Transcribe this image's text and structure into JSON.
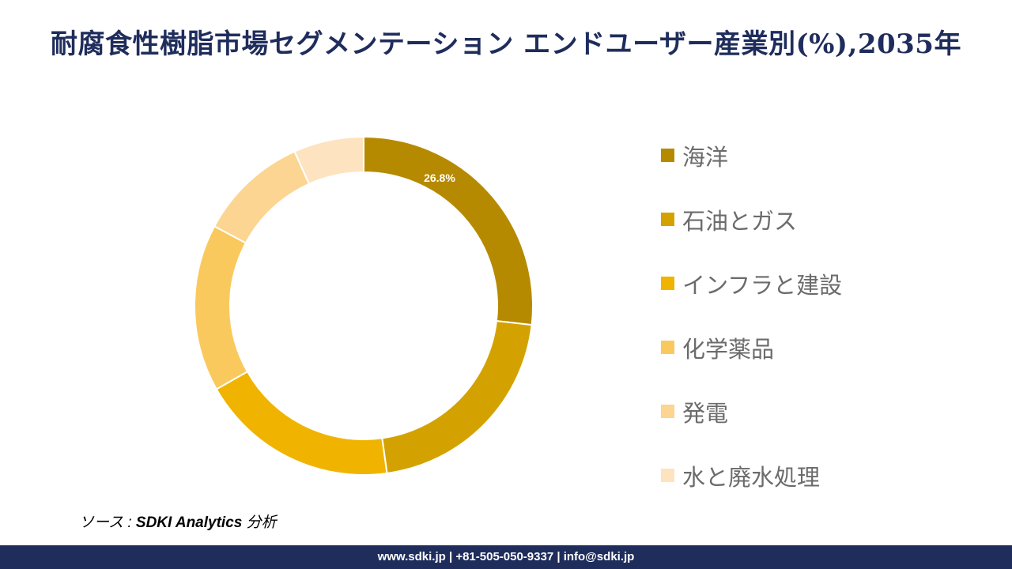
{
  "title": "耐腐食性樹脂市場セグメンテーション エンドユーザー産業別(%),2035年",
  "chart_data": {
    "type": "pie",
    "variant": "donut",
    "title": "耐腐食性樹脂市場セグメンテーション エンドユーザー産業別(%),2035年",
    "categories": [
      "海洋",
      "石油とガス",
      "インフラと建設",
      "化学薬品",
      "発電",
      "水と廃水処理"
    ],
    "values": [
      26.8,
      21.0,
      19.0,
      16.0,
      10.5,
      6.7
    ],
    "colors": [
      "#b68a00",
      "#d4a200",
      "#f0b400",
      "#fac95e",
      "#fcd592",
      "#fde3c0"
    ],
    "data_labels": [
      "26.8%",
      "",
      "",
      "",
      "",
      ""
    ],
    "legend_position": "right"
  },
  "source": {
    "prefix": "ソース : ",
    "text": "SDKI Analytics",
    "suffix": " 分析"
  },
  "footer": "www.sdki.jp | +81-505-050-9337 | info@sdki.jp"
}
